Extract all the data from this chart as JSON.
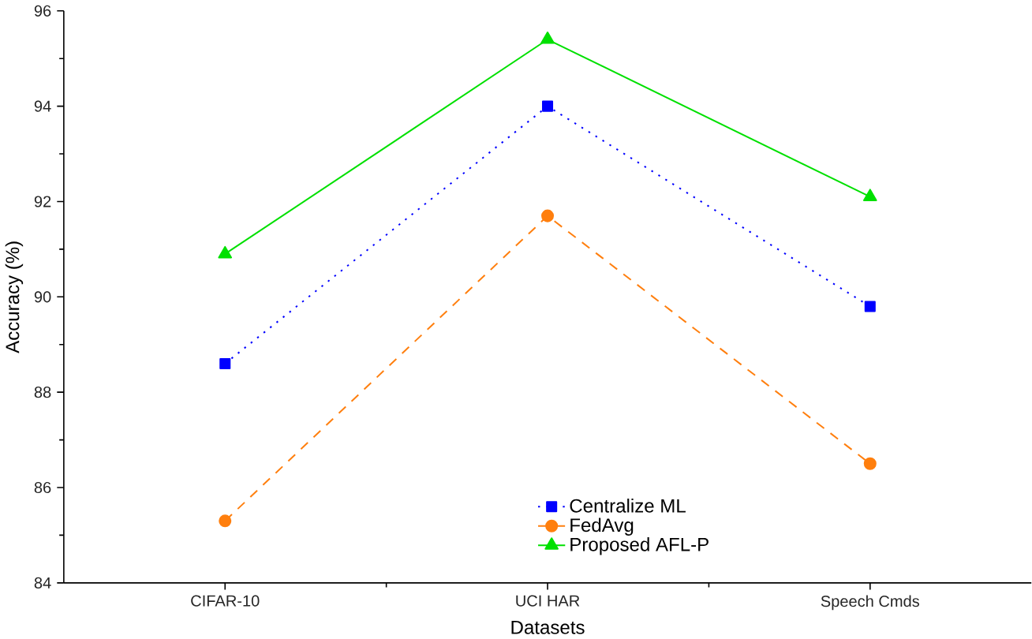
{
  "chart_data": {
    "type": "line",
    "xlabel": "Datasets",
    "ylabel": "Accuracy (%)",
    "categories": [
      "CIFAR-10",
      "UCI HAR",
      "Speech Cmds"
    ],
    "series": [
      {
        "name": "Centralize ML",
        "color": "#0000ff",
        "values": [
          88.6,
          94.0,
          89.8
        ],
        "marker": "square",
        "line_style": "dotted"
      },
      {
        "name": "FedAvg",
        "color": "#ff7f0e",
        "values": [
          85.3,
          91.7,
          86.5
        ],
        "marker": "circle",
        "line_style": "dashed"
      },
      {
        "name": "Proposed AFL-P",
        "color": "#00e000",
        "values": [
          90.9,
          95.4,
          92.1
        ],
        "marker": "triangle",
        "line_style": "solid"
      }
    ],
    "ylim": [
      84,
      96
    ],
    "yticks": [
      84,
      86,
      88,
      90,
      92,
      94,
      96
    ],
    "grid": false,
    "legend": "bottom"
  }
}
